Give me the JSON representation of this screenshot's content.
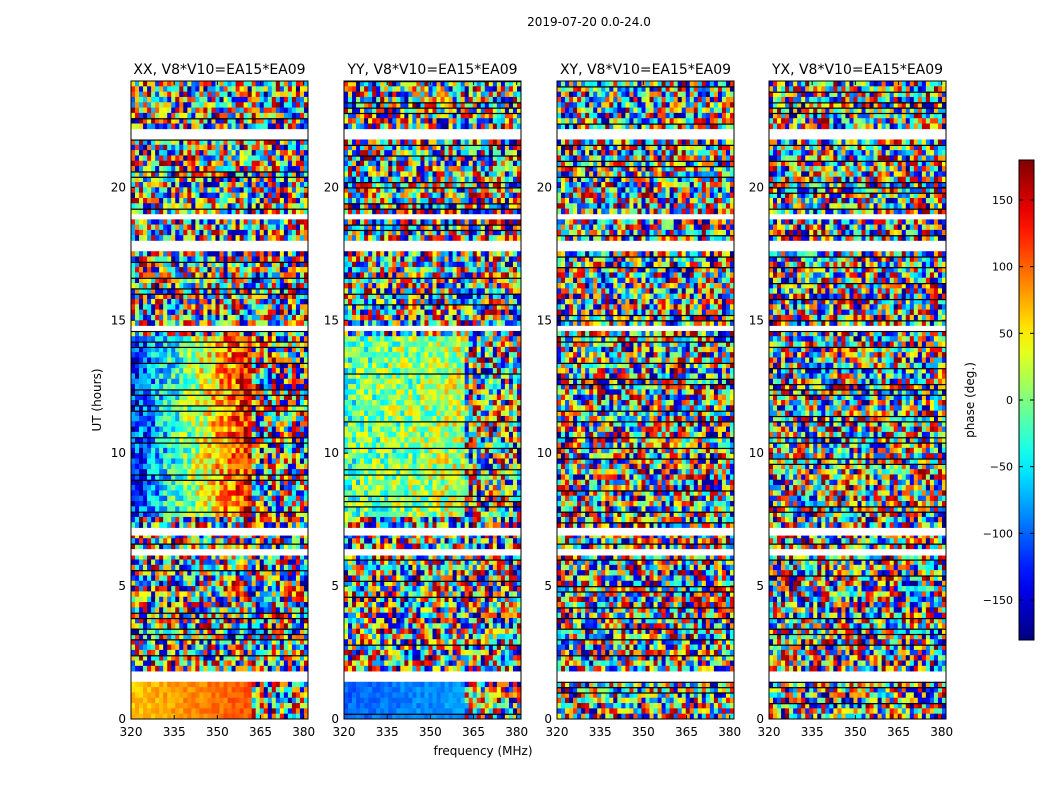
{
  "figure_title": "2019-07-20 0.0-24.0",
  "chart_data": [
    {
      "type": "heatmap",
      "title": "XX, V8*V10=EA15*EA09",
      "xlabel": "",
      "ylabel": "UT (hours)",
      "xlim": [
        320,
        381.5
      ],
      "ylim": [
        0,
        24
      ],
      "x_ticks": [
        320,
        335,
        350,
        365,
        380
      ],
      "y_ticks": [
        0,
        5,
        10,
        15,
        20
      ],
      "value_label": "phase (deg.)",
      "value_range": [
        -180,
        180
      ]
    },
    {
      "type": "heatmap",
      "title": "YY, V8*V10=EA15*EA09",
      "xlabel": "frequency (MHz)",
      "ylabel": "",
      "xlim": [
        320,
        381.5
      ],
      "ylim": [
        0,
        24
      ],
      "x_ticks": [
        320,
        335,
        350,
        365,
        380
      ],
      "y_ticks": [
        0,
        5,
        10,
        15,
        20
      ],
      "value_label": "phase (deg.)",
      "value_range": [
        -180,
        180
      ]
    },
    {
      "type": "heatmap",
      "title": "XY, V8*V10=EA15*EA09",
      "xlabel": "",
      "ylabel": "",
      "xlim": [
        320,
        381.5
      ],
      "ylim": [
        0,
        24
      ],
      "x_ticks": [
        320,
        335,
        350,
        365,
        380
      ],
      "y_ticks": [
        0,
        5,
        10,
        15,
        20
      ],
      "value_label": "phase (deg.)",
      "value_range": [
        -180,
        180
      ]
    },
    {
      "type": "heatmap",
      "title": "YX, V8*V10=EA15*EA09",
      "xlabel": "",
      "ylabel": "",
      "xlim": [
        320,
        381.5
      ],
      "ylim": [
        0,
        24
      ],
      "x_ticks": [
        320,
        335,
        350,
        365,
        380
      ],
      "y_ticks": [
        0,
        5,
        10,
        15,
        20
      ],
      "value_label": "phase (deg.)",
      "value_range": [
        -180,
        180
      ]
    }
  ],
  "colorbar": {
    "label": "phase (deg.)",
    "range": [
      -180,
      180
    ],
    "ticks": [
      150,
      100,
      50,
      0,
      -50,
      -100,
      -150
    ],
    "tick_labels": [
      "150",
      "100",
      "50",
      "0",
      "−50",
      "−100",
      "−150"
    ],
    "colormap": "jet"
  }
}
